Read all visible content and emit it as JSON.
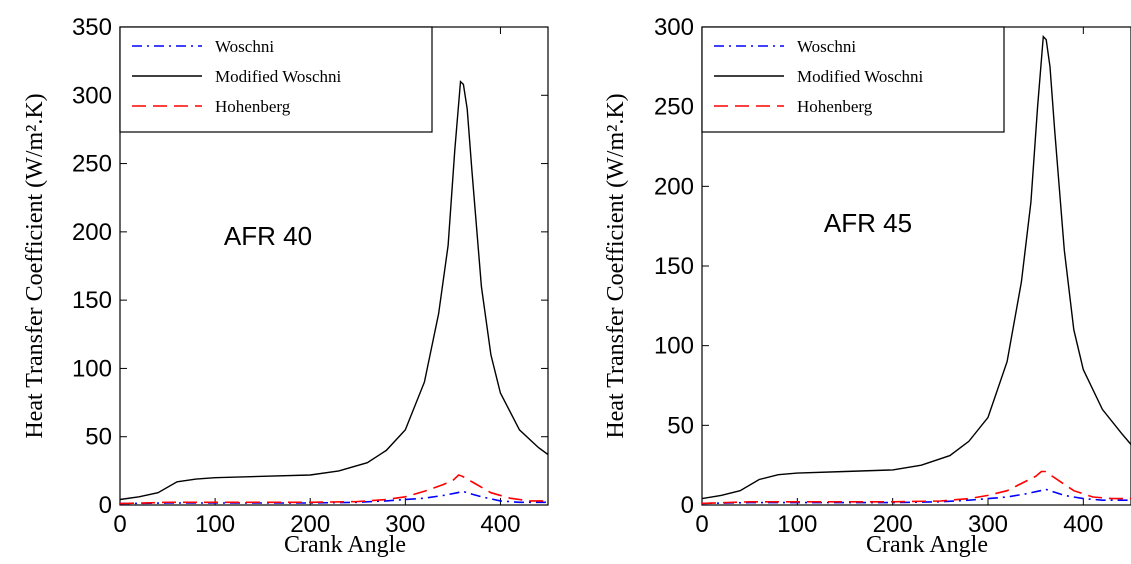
{
  "chart_data": [
    {
      "type": "line",
      "annotation": "AFR 40",
      "title": "",
      "xlabel": "Crank Angle",
      "ylabel": "Heat Transfer Coefficient (W/m².K)",
      "xlim": [
        0,
        450
      ],
      "ylim": [
        0,
        350
      ],
      "xticks": [
        0,
        100,
        200,
        300,
        400
      ],
      "yticks": [
        0,
        50,
        100,
        150,
        200,
        250,
        300,
        350
      ],
      "grid": false,
      "legend_position": "top-left",
      "series": [
        {
          "name": "Woschni",
          "color": "#0000ff",
          "dash": "dash-dot",
          "x": [
            0,
            50,
            100,
            150,
            200,
            250,
            280,
            300,
            320,
            340,
            355,
            360,
            370,
            380,
            400,
            420,
            450
          ],
          "y": [
            1,
            1.5,
            1.5,
            1.5,
            1.5,
            2,
            3,
            4,
            5,
            7,
            9,
            10,
            8,
            6,
            3,
            2,
            2
          ]
        },
        {
          "name": "Modified Woschni",
          "color": "#000000",
          "dash": "solid",
          "x": [
            0,
            20,
            40,
            60,
            80,
            100,
            150,
            200,
            230,
            260,
            280,
            300,
            320,
            335,
            345,
            352,
            358,
            361,
            365,
            370,
            380,
            390,
            400,
            420,
            440,
            450
          ],
          "y": [
            4,
            6,
            9,
            17,
            19,
            20,
            21,
            22,
            25,
            31,
            40,
            55,
            90,
            140,
            190,
            260,
            310,
            308,
            290,
            245,
            160,
            110,
            82,
            55,
            42,
            37
          ]
        },
        {
          "name": "Hohenberg",
          "color": "#ff0000",
          "dash": "dashed",
          "x": [
            0,
            50,
            100,
            150,
            200,
            250,
            280,
            300,
            320,
            340,
            350,
            356,
            360,
            365,
            375,
            390,
            410,
            430,
            450
          ],
          "y": [
            1,
            2,
            2,
            2,
            2,
            2.5,
            4,
            6,
            10,
            15,
            18,
            22,
            21,
            19,
            15,
            9,
            5,
            3,
            3
          ]
        }
      ]
    },
    {
      "type": "line",
      "annotation": "AFR 45",
      "title": "",
      "xlabel": "Crank Angle",
      "ylabel": "Heat Transfer Coefficient (W/m².K)",
      "xlim": [
        0,
        450
      ],
      "ylim": [
        0,
        300
      ],
      "xticks": [
        0,
        100,
        200,
        300,
        400
      ],
      "yticks": [
        0,
        50,
        100,
        150,
        200,
        250,
        300
      ],
      "grid": false,
      "legend_position": "top-left",
      "series": [
        {
          "name": "Woschni",
          "color": "#0000ff",
          "dash": "dash-dot",
          "x": [
            0,
            50,
            100,
            150,
            200,
            250,
            280,
            300,
            320,
            340,
            355,
            360,
            370,
            380,
            400,
            420,
            450
          ],
          "y": [
            1,
            1.5,
            1.5,
            1.5,
            1.5,
            2,
            3,
            4,
            5,
            7,
            9,
            10,
            8,
            6,
            4,
            3,
            3
          ]
        },
        {
          "name": "Modified Woschni",
          "color": "#000000",
          "dash": "solid",
          "x": [
            0,
            20,
            40,
            60,
            80,
            100,
            150,
            200,
            230,
            260,
            280,
            300,
            320,
            335,
            345,
            352,
            358,
            361,
            365,
            370,
            380,
            390,
            400,
            420,
            440,
            450
          ],
          "y": [
            4,
            6,
            9,
            16,
            19,
            20,
            21,
            22,
            25,
            31,
            40,
            55,
            90,
            140,
            190,
            250,
            294,
            292,
            275,
            235,
            160,
            110,
            85,
            60,
            45,
            38
          ]
        },
        {
          "name": "Hohenberg",
          "color": "#ff0000",
          "dash": "dashed",
          "x": [
            0,
            50,
            100,
            150,
            200,
            250,
            280,
            300,
            320,
            340,
            350,
            356,
            360,
            365,
            375,
            390,
            410,
            430,
            450
          ],
          "y": [
            1,
            2,
            2,
            2,
            2,
            2.5,
            4,
            6,
            9,
            15,
            18,
            21,
            21,
            19,
            15,
            9,
            5,
            4,
            4
          ]
        }
      ]
    }
  ]
}
